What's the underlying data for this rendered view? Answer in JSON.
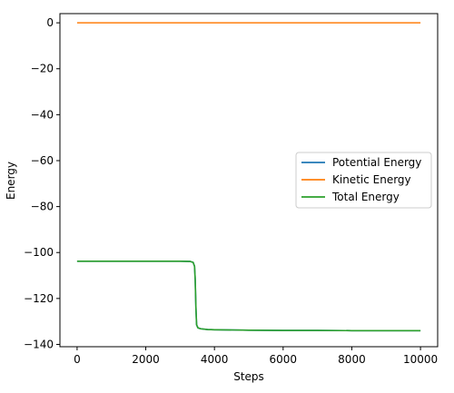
{
  "chart_data": {
    "type": "line",
    "title": "",
    "xlabel": "Steps",
    "ylabel": "Energy",
    "xlim": [
      -500,
      10500
    ],
    "ylim": [
      -141,
      4
    ],
    "x_ticks": [
      0,
      2000,
      4000,
      6000,
      8000,
      10000
    ],
    "x_tick_labels": [
      "0",
      "2000",
      "4000",
      "6000",
      "8000",
      "10000"
    ],
    "y_ticks": [
      0,
      -20,
      -40,
      -60,
      -80,
      -100,
      -120,
      -140
    ],
    "y_tick_labels": [
      "0",
      "−20",
      "−40",
      "−60",
      "−80",
      "−100",
      "−120",
      "−140"
    ],
    "grid": false,
    "legend_position": "center-right",
    "series": [
      {
        "name": "Potential Energy",
        "color": "#1f77b4",
        "x": [
          0,
          1000,
          2000,
          3000,
          3300,
          3380,
          3420,
          3440,
          3460,
          3480,
          3520,
          3600,
          3800,
          4000,
          5000,
          6000,
          7000,
          8000,
          9000,
          10000
        ],
        "y": [
          -103.8,
          -103.8,
          -103.8,
          -103.8,
          -103.9,
          -104.3,
          -106,
          -112,
          -124,
          -131.5,
          -132.8,
          -133.2,
          -133.5,
          -133.6,
          -133.8,
          -133.9,
          -133.9,
          -134,
          -134,
          -134
        ]
      },
      {
        "name": "Kinetic Energy",
        "color": "#ff7f0e",
        "x": [
          0,
          10000
        ],
        "y": [
          0,
          0
        ]
      },
      {
        "name": "Total Energy",
        "color": "#2ca02c",
        "x": [
          0,
          1000,
          2000,
          3000,
          3300,
          3380,
          3420,
          3440,
          3460,
          3480,
          3520,
          3600,
          3800,
          4000,
          5000,
          6000,
          7000,
          8000,
          9000,
          10000
        ],
        "y": [
          -103.8,
          -103.8,
          -103.8,
          -103.8,
          -103.9,
          -104.3,
          -106,
          -112,
          -124,
          -131.5,
          -132.8,
          -133.2,
          -133.5,
          -133.6,
          -133.8,
          -133.9,
          -133.9,
          -134,
          -134,
          -134
        ]
      }
    ]
  }
}
